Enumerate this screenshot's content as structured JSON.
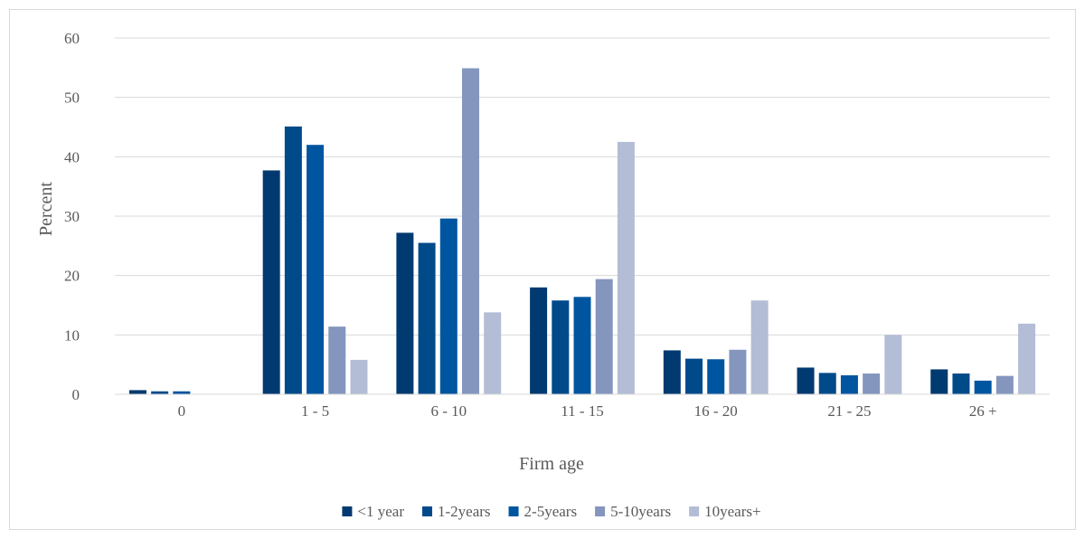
{
  "chart_data": {
    "type": "bar",
    "xlabel": "Firm age",
    "ylabel": "Percent",
    "ylim": [
      0,
      60
    ],
    "yticks": [
      0,
      10,
      20,
      30,
      40,
      50,
      60
    ],
    "grid": true,
    "legend_position": "bottom",
    "categories": [
      "0",
      "1 - 5",
      "6 - 10",
      "11 - 15",
      "16 - 20",
      "21 - 25",
      "26 +"
    ],
    "series": [
      {
        "name": "<1 year",
        "color": "#003a70",
        "values": [
          0.7,
          37.7,
          27.2,
          18.0,
          7.4,
          4.5,
          4.2
        ]
      },
      {
        "name": "1-2years",
        "color": "#004a8a",
        "values": [
          0.5,
          45.1,
          25.5,
          15.8,
          6.0,
          3.6,
          3.5
        ]
      },
      {
        "name": "2-5years",
        "color": "#0055a0",
        "values": [
          0.5,
          42.0,
          29.6,
          16.4,
          5.9,
          3.2,
          2.3
        ]
      },
      {
        "name": "5-10years",
        "color": "#8496bd",
        "values": [
          0.0,
          11.4,
          54.9,
          19.4,
          7.5,
          3.5,
          3.1
        ]
      },
      {
        "name": "10years+",
        "color": "#b4bdd6",
        "values": [
          0.0,
          5.8,
          13.8,
          42.5,
          15.8,
          10.0,
          11.9
        ]
      }
    ]
  }
}
